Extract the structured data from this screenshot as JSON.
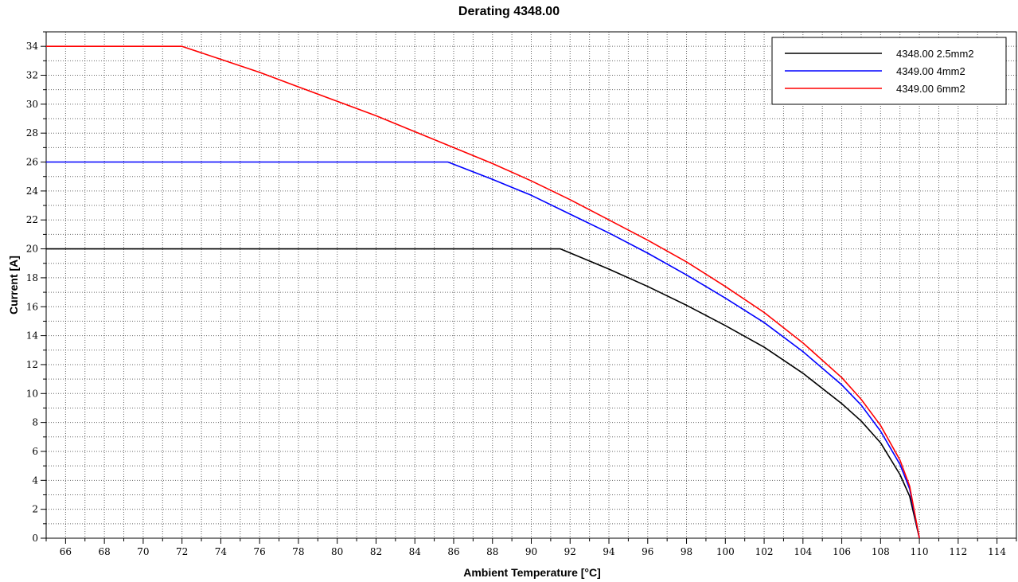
{
  "chart_data": {
    "type": "line",
    "title": "Derating 4348.00",
    "xlabel": "Ambient Temperature [°C]",
    "ylabel": "Current [A]",
    "xlim": [
      65,
      115
    ],
    "ylim": [
      0,
      35
    ],
    "x_ticks": [
      66,
      68,
      70,
      72,
      74,
      76,
      78,
      80,
      82,
      84,
      86,
      88,
      90,
      92,
      94,
      96,
      98,
      100,
      102,
      104,
      106,
      108,
      110,
      112,
      114
    ],
    "y_ticks": [
      0,
      2,
      4,
      6,
      8,
      10,
      12,
      14,
      16,
      18,
      20,
      22,
      24,
      26,
      28,
      30,
      32,
      34
    ],
    "grid": true,
    "legend": "top-right",
    "series": [
      {
        "name": "4348.00 2.5mm2",
        "color": "#000000",
        "points": [
          [
            65,
            20
          ],
          [
            91.5,
            20
          ],
          [
            94,
            18.6
          ],
          [
            96,
            17.4
          ],
          [
            98,
            16.1
          ],
          [
            100,
            14.7
          ],
          [
            102,
            13.2
          ],
          [
            104,
            11.4
          ],
          [
            106,
            9.3
          ],
          [
            107,
            8.1
          ],
          [
            108,
            6.6
          ],
          [
            109,
            4.4
          ],
          [
            109.5,
            2.9
          ],
          [
            110,
            0
          ]
        ]
      },
      {
        "name": "4349.00 4mm2",
        "color": "#0000ff",
        "points": [
          [
            65,
            26
          ],
          [
            85.7,
            26
          ],
          [
            88,
            24.8
          ],
          [
            90,
            23.7
          ],
          [
            92,
            22.4
          ],
          [
            94,
            21.1
          ],
          [
            96,
            19.7
          ],
          [
            98,
            18.2
          ],
          [
            100,
            16.6
          ],
          [
            102,
            14.9
          ],
          [
            104,
            12.9
          ],
          [
            106,
            10.6
          ],
          [
            107,
            9.2
          ],
          [
            108,
            7.4
          ],
          [
            109,
            5.1
          ],
          [
            109.5,
            3.4
          ],
          [
            110,
            0
          ]
        ]
      },
      {
        "name": "4349.00 6mm2",
        "color": "#ff0000",
        "points": [
          [
            65,
            34
          ],
          [
            72,
            34
          ],
          [
            74,
            33.1
          ],
          [
            76,
            32.2
          ],
          [
            78,
            31.2
          ],
          [
            80,
            30.2
          ],
          [
            82,
            29.2
          ],
          [
            84,
            28.1
          ],
          [
            86,
            27.0
          ],
          [
            88,
            25.9
          ],
          [
            90,
            24.7
          ],
          [
            92,
            23.4
          ],
          [
            94,
            22.0
          ],
          [
            96,
            20.6
          ],
          [
            98,
            19.1
          ],
          [
            100,
            17.4
          ],
          [
            102,
            15.6
          ],
          [
            104,
            13.5
          ],
          [
            106,
            11.1
          ],
          [
            107,
            9.6
          ],
          [
            108,
            7.8
          ],
          [
            109,
            5.4
          ],
          [
            109.5,
            3.6
          ],
          [
            110,
            0
          ]
        ]
      }
    ]
  }
}
